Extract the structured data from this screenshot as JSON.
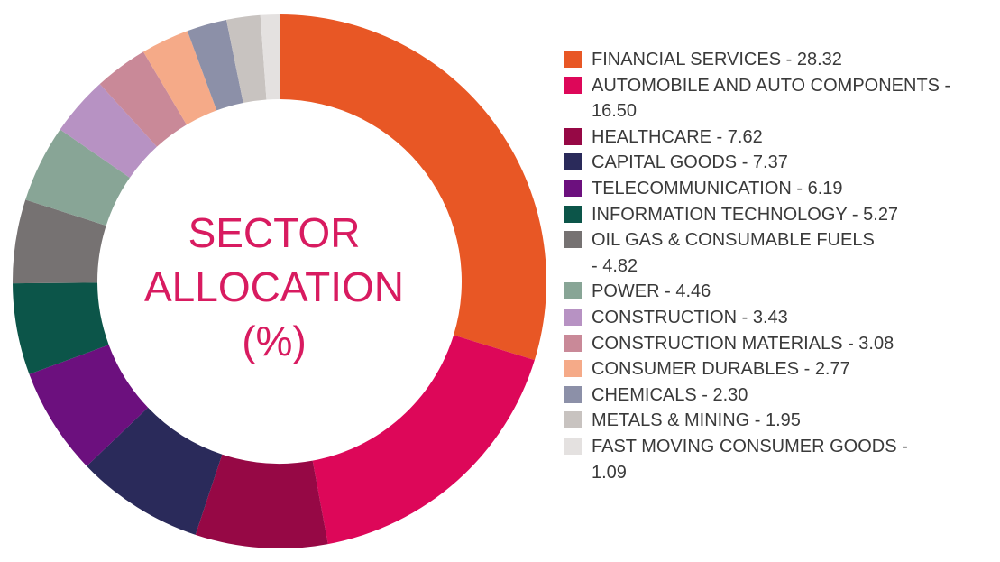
{
  "center_label": {
    "line1": "SECTOR",
    "line2": "ALLOCATION",
    "line3": "(%)"
  },
  "chart_data": {
    "type": "pie",
    "donut": true,
    "title": "SECTOR ALLOCATION (%)",
    "legend_position": "right",
    "slices": [
      {
        "label": "FINANCIAL SERVICES - 28.32",
        "name": "FINANCIAL SERVICES",
        "value": 28.32,
        "color": "#e85725"
      },
      {
        "label": "AUTOMOBILE AND AUTO COMPONENTS - 16.50",
        "name": "AUTOMOBILE AND AUTO COMPONENTS",
        "value": 16.5,
        "color": "#dd0759"
      },
      {
        "label": "HEALTHCARE - 7.62",
        "name": "HEALTHCARE",
        "value": 7.62,
        "color": "#960845"
      },
      {
        "label": "CAPITAL GOODS - 7.37",
        "name": "CAPITAL GOODS",
        "value": 7.37,
        "color": "#2a2a5a"
      },
      {
        "label": "TELECOMMUNICATION - 6.19",
        "name": "TELECOMMUNICATION",
        "value": 6.19,
        "color": "#6c107e"
      },
      {
        "label": "INFORMATION TECHNOLOGY - 5.27",
        "name": "INFORMATION TECHNOLOGY",
        "value": 5.27,
        "color": "#0c5549"
      },
      {
        "label": "OIL GAS & CONSUMABLE FUELS - 4.82",
        "name": "OIL GAS & CONSUMABLE FUELS",
        "value": 4.82,
        "color": "#767272"
      },
      {
        "label": "POWER - 4.46",
        "name": "POWER",
        "value": 4.46,
        "color": "#88a596"
      },
      {
        "label": "CONSTRUCTION - 3.43",
        "name": "CONSTRUCTION",
        "value": 3.43,
        "color": "#b792c3"
      },
      {
        "label": "CONSTRUCTION MATERIALS - 3.08",
        "name": "CONSTRUCTION MATERIALS",
        "value": 3.08,
        "color": "#c98998"
      },
      {
        "label": "CONSUMER DURABLES - 2.77",
        "name": "CONSUMER DURABLES",
        "value": 2.77,
        "color": "#f5aa88"
      },
      {
        "label": "CHEMICALS - 2.30",
        "name": "CHEMICALS",
        "value": 2.3,
        "color": "#8c90a8"
      },
      {
        "label": "METALS & MINING - 1.95",
        "name": "METALS & MINING",
        "value": 1.95,
        "color": "#c8c3c0"
      },
      {
        "label": "FAST MOVING CONSUMER GOODS - 1.09",
        "name": "FAST MOVING CONSUMER GOODS",
        "value": 1.09,
        "color": "#e4e1e0"
      }
    ]
  },
  "legend": {
    "lines": [
      [
        "FINANCIAL SERVICES - 28.32"
      ],
      [
        "AUTOMOBILE AND AUTO COMPONENTS -",
        "16.50"
      ],
      [
        "HEALTHCARE - 7.62"
      ],
      [
        "CAPITAL GOODS - 7.37"
      ],
      [
        "TELECOMMUNICATION - 6.19"
      ],
      [
        "INFORMATION TECHNOLOGY - 5.27"
      ],
      [
        "OIL GAS & CONSUMABLE FUELS",
        "- 4.82"
      ],
      [
        "POWER - 4.46"
      ],
      [
        "CONSTRUCTION - 3.43"
      ],
      [
        "CONSTRUCTION MATERIALS - 3.08"
      ],
      [
        "CONSUMER DURABLES - 2.77"
      ],
      [
        "CHEMICALS - 2.30"
      ],
      [
        "METALS & MINING - 1.95"
      ],
      [
        "FAST MOVING CONSUMER GOODS -",
        "1.09"
      ]
    ]
  }
}
